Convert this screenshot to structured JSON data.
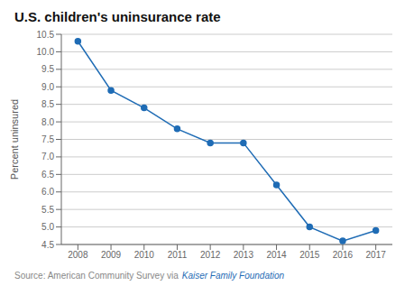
{
  "chart_data": {
    "type": "line",
    "title": "U.S. children's uninsurance rate",
    "ylabel": "Percent uninsured",
    "x": [
      2008,
      2009,
      2010,
      2011,
      2012,
      2013,
      2014,
      2015,
      2016,
      2017
    ],
    "values": [
      10.3,
      8.9,
      8.4,
      7.8,
      7.4,
      7.4,
      6.2,
      5.0,
      4.6,
      4.9
    ],
    "color": "#1f6cb5",
    "marker": "circle",
    "xlim": [
      2007.5,
      2017.5
    ],
    "xticks": [
      2008,
      2009,
      2010,
      2011,
      2012,
      2013,
      2014,
      2015,
      2016,
      2017
    ],
    "ylim": [
      4.5,
      10.5
    ],
    "yticks": [
      4.5,
      {
        "value": 5,
        "label": "5.0"
      },
      5.5,
      {
        "value": 6,
        "label": "6.0"
      },
      6.5,
      {
        "value": 7,
        "label": "7.0"
      },
      7.5,
      {
        "value": 8,
        "label": "8.0"
      },
      8.5,
      {
        "value": 9,
        "label": "9.0"
      },
      9.5,
      {
        "value": 10,
        "label": "10.0"
      },
      10.5
    ],
    "grid": true,
    "annotations": [
      {
        "text": "Source: American Community Survey via",
        "color": "#888888"
      },
      {
        "text": "Kaiser Family Foundation",
        "color": "#1f6cb5"
      }
    ]
  }
}
